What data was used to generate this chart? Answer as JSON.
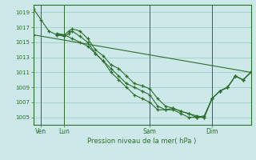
{
  "bg_color": "#cce8e8",
  "grid_color": "#99ccbb",
  "line_color": "#2d6e2d",
  "title": "Pression niveau de la mer( hPa )",
  "ylim": [
    1004.0,
    1020.0
  ],
  "yticks": [
    1005,
    1007,
    1009,
    1011,
    1013,
    1015,
    1017,
    1019
  ],
  "xlim": [
    0,
    14
  ],
  "xtick_pos": [
    0.5,
    2.0,
    7.5,
    11.5
  ],
  "xtick_labels": [
    "Ven",
    "Lun",
    "Sam",
    "Dim"
  ],
  "vline_pos": [
    0.5,
    2.0,
    7.5,
    11.5
  ],
  "series1_x": [
    0.0,
    0.5,
    1.0,
    1.5,
    2.0,
    2.5,
    3.0,
    3.5,
    4.0,
    4.5,
    5.0,
    5.5,
    6.0,
    6.5,
    7.0,
    7.5,
    8.0,
    8.5,
    9.0,
    9.5,
    10.0,
    10.5,
    11.0,
    11.5,
    12.0,
    12.5,
    13.0,
    13.5,
    14.0
  ],
  "series1_y": [
    1019.5,
    1018.0,
    1016.5,
    1016.0,
    1016.0,
    1015.5,
    1015.0,
    1014.5,
    1013.5,
    1012.5,
    1011.5,
    1010.5,
    1009.5,
    1009.0,
    1008.5,
    1008.0,
    1006.5,
    1006.0,
    1006.0,
    1005.5,
    1005.0,
    1005.0,
    1005.0,
    1007.5,
    1008.5,
    1009.0,
    1010.5,
    1010.0,
    1011.0
  ],
  "series2_x": [
    1.5,
    2.0,
    2.3,
    2.5,
    3.0,
    3.5,
    4.0,
    4.5,
    5.0,
    5.5,
    6.0,
    6.5,
    7.0,
    7.5,
    8.0,
    8.5,
    9.0,
    9.5,
    10.0,
    10.5,
    11.0,
    11.5,
    12.0,
    12.5,
    13.0,
    13.5,
    14.0
  ],
  "series2_y": [
    1016.2,
    1016.0,
    1016.5,
    1016.8,
    1016.5,
    1015.5,
    1014.0,
    1013.2,
    1012.0,
    1011.5,
    1010.5,
    1009.5,
    1009.2,
    1008.8,
    1007.5,
    1006.5,
    1006.2,
    1005.8,
    1005.5,
    1005.0,
    1005.2,
    1007.5,
    1008.5,
    1009.0,
    1010.5,
    1010.0,
    1011.0
  ],
  "series3_x": [
    1.5,
    2.0,
    2.3,
    2.5,
    3.0,
    3.5,
    4.0,
    4.5,
    5.0,
    5.5,
    6.0,
    6.5,
    7.0,
    7.5,
    8.0,
    8.5,
    9.0,
    9.5,
    10.0,
    10.5,
    11.0,
    11.5,
    12.0,
    12.5,
    13.0,
    13.5,
    14.0
  ],
  "series3_y": [
    1016.0,
    1015.8,
    1016.2,
    1016.5,
    1015.8,
    1015.0,
    1013.5,
    1012.5,
    1011.0,
    1010.0,
    1009.0,
    1008.0,
    1007.5,
    1007.0,
    1006.0,
    1006.0,
    1006.2,
    1005.8,
    1005.5,
    1005.2,
    1005.0,
    1007.5,
    1008.5,
    1009.0,
    1010.5,
    1010.0,
    1011.0
  ],
  "series4_x": [
    0.0,
    14.0
  ],
  "series4_y": [
    1016.0,
    1011.0
  ]
}
